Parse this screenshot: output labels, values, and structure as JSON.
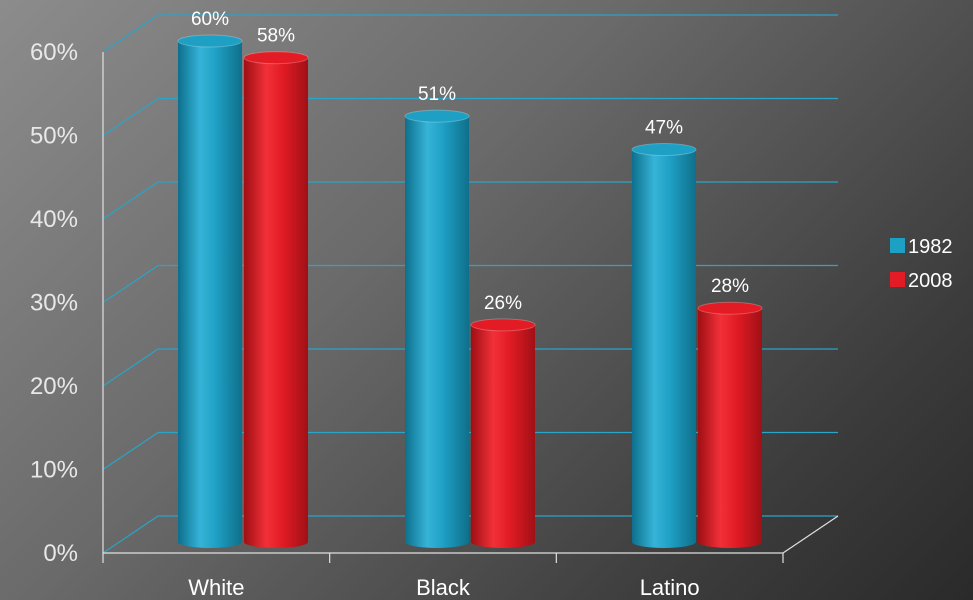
{
  "chart_data": {
    "type": "bar",
    "title": "",
    "xlabel": "",
    "ylabel": "",
    "categories": [
      "White",
      "Black",
      "Latino"
    ],
    "series": [
      {
        "name": "1982",
        "values": [
          60,
          51,
          47
        ],
        "color": "#1e9fc4"
      },
      {
        "name": "2008",
        "values": [
          58,
          26,
          28
        ],
        "color": "#e21b24"
      }
    ],
    "ylim": [
      0,
      60
    ],
    "yticks": [
      "0%",
      "10%",
      "20%",
      "30%",
      "40%",
      "50%",
      "60%"
    ],
    "data_labels": [
      [
        "60%",
        "51%",
        "47%"
      ],
      [
        "58%",
        "26%",
        "28%"
      ]
    ],
    "grid": true,
    "legend": "right",
    "bar_style": "3d-cylinder"
  }
}
